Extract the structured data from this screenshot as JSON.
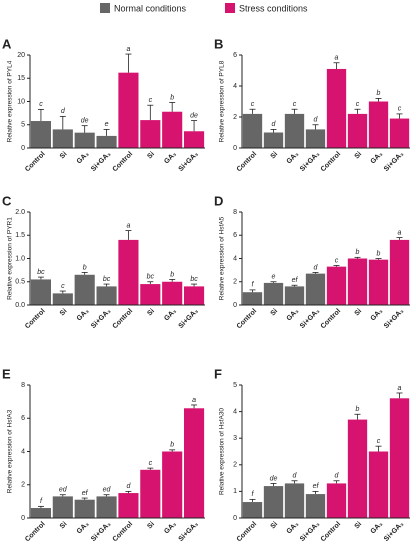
{
  "chart_data": [
    {
      "type": "bar",
      "panel": "A",
      "ylabel": "Relative expression of PYL4",
      "categories": [
        "Control",
        "Si",
        "GA₃",
        "Si+GA₃"
      ],
      "series": [
        {
          "name": "Normal conditions",
          "color": "#666666",
          "values": [
            5.8,
            4.0,
            3.3,
            2.6
          ],
          "errors": [
            2.5,
            2.8,
            1.5,
            1.4
          ],
          "letters": [
            "c",
            "d",
            "de",
            "e"
          ]
        },
        {
          "name": "Stress conditions",
          "color": "#d6136f",
          "values": [
            16.2,
            6.0,
            7.8,
            3.6
          ],
          "errors": [
            4.0,
            3.2,
            2.0,
            2.3
          ],
          "letters": [
            "a",
            "c",
            "b",
            "de"
          ]
        }
      ],
      "ylim": [
        0,
        20
      ],
      "yticks": [
        0,
        5,
        10,
        15,
        20
      ]
    },
    {
      "type": "bar",
      "panel": "B",
      "ylabel": "Relative expression of PYL8",
      "categories": [
        "Control",
        "Si",
        "GA₃",
        "Si+GA₃"
      ],
      "series": [
        {
          "name": "Normal conditions",
          "color": "#666666",
          "values": [
            2.2,
            1.0,
            2.2,
            1.2
          ],
          "errors": [
            0.3,
            0.2,
            0.3,
            0.3
          ],
          "letters": [
            "c",
            "d",
            "c",
            "d"
          ]
        },
        {
          "name": "Stress conditions",
          "color": "#d6136f",
          "values": [
            5.1,
            2.2,
            3.0,
            1.9
          ],
          "errors": [
            0.4,
            0.3,
            0.2,
            0.3
          ],
          "letters": [
            "a",
            "c",
            "b",
            "c"
          ]
        }
      ],
      "ylim": [
        0,
        6
      ],
      "yticks": [
        0,
        2,
        4,
        6
      ]
    },
    {
      "type": "bar",
      "panel": "C",
      "ylabel": "Relative expression of PYR1",
      "categories": [
        "Control",
        "Si",
        "GA₃",
        "Si+GA₃"
      ],
      "series": [
        {
          "name": "Normal conditions",
          "color": "#666666",
          "values": [
            0.55,
            0.25,
            0.65,
            0.4
          ],
          "errors": [
            0.05,
            0.05,
            0.05,
            0.05
          ],
          "letters": [
            "bc",
            "c",
            "b",
            "bc"
          ]
        },
        {
          "name": "Stress conditions",
          "color": "#d6136f",
          "values": [
            1.4,
            0.45,
            0.5,
            0.4
          ],
          "errors": [
            0.2,
            0.05,
            0.05,
            0.05
          ],
          "letters": [
            "a",
            "bc",
            "b",
            "bc"
          ]
        }
      ],
      "ylim": [
        0,
        2
      ],
      "yticks": [
        {
          "value": 0,
          "label": "0.0"
        },
        {
          "value": 0.5,
          "label": "0.5"
        },
        {
          "value": 1,
          "label": "1.0"
        },
        {
          "value": 1.5,
          "label": "1.5"
        },
        {
          "value": 2,
          "label": "2.0"
        }
      ]
    },
    {
      "type": "bar",
      "panel": "D",
      "ylabel": "Relative expression of HsfA5",
      "categories": [
        "Control",
        "Si",
        "GA₃",
        "Si+GA₃"
      ],
      "series": [
        {
          "name": "Normal conditions",
          "color": "#666666",
          "values": [
            1.1,
            1.9,
            1.6,
            2.7
          ],
          "errors": [
            0.2,
            0.1,
            0.1,
            0.1
          ],
          "letters": [
            "f",
            "e",
            "ef",
            "d"
          ]
        },
        {
          "name": "Stress conditions",
          "color": "#d6136f",
          "values": [
            3.3,
            4.0,
            3.9,
            5.6
          ],
          "errors": [
            0.1,
            0.1,
            0.1,
            0.2
          ],
          "letters": [
            "c",
            "b",
            "b",
            "a"
          ]
        }
      ],
      "ylim": [
        0,
        8
      ],
      "yticks": [
        0,
        2,
        4,
        6,
        8
      ]
    },
    {
      "type": "bar",
      "panel": "E",
      "ylabel": "Relative expression of HsfA3",
      "categories": [
        "Control",
        "Si",
        "GA₃",
        "Si+GA₃"
      ],
      "series": [
        {
          "name": "Normal conditions",
          "color": "#666666",
          "values": [
            0.6,
            1.3,
            1.1,
            1.3
          ],
          "errors": [
            0.1,
            0.1,
            0.1,
            0.1
          ],
          "letters": [
            "f",
            "ed",
            "ef",
            "ed"
          ]
        },
        {
          "name": "Stress conditions",
          "color": "#d6136f",
          "values": [
            1.5,
            2.9,
            4.0,
            6.6
          ],
          "errors": [
            0.1,
            0.1,
            0.1,
            0.2
          ],
          "letters": [
            "d",
            "c",
            "b",
            "a"
          ]
        }
      ],
      "ylim": [
        0,
        8
      ],
      "yticks": [
        0,
        2,
        4,
        6,
        8
      ]
    },
    {
      "type": "bar",
      "panel": "F",
      "ylabel": "Relative expression of HsfA30",
      "categories": [
        "Control",
        "Si",
        "GA₃",
        "Si+GA₃"
      ],
      "series": [
        {
          "name": "Normal conditions",
          "color": "#666666",
          "values": [
            0.6,
            1.2,
            1.3,
            0.9
          ],
          "errors": [
            0.1,
            0.1,
            0.1,
            0.1
          ],
          "letters": [
            "f",
            "de",
            "d",
            "ef"
          ]
        },
        {
          "name": "Stress conditions",
          "color": "#d6136f",
          "values": [
            1.3,
            3.7,
            2.5,
            4.5
          ],
          "errors": [
            0.1,
            0.2,
            0.2,
            0.2
          ],
          "letters": [
            "d",
            "b",
            "c",
            "a"
          ]
        }
      ],
      "ylim": [
        0,
        5
      ],
      "yticks": [
        0,
        1,
        2,
        3,
        4,
        5
      ]
    }
  ]
}
